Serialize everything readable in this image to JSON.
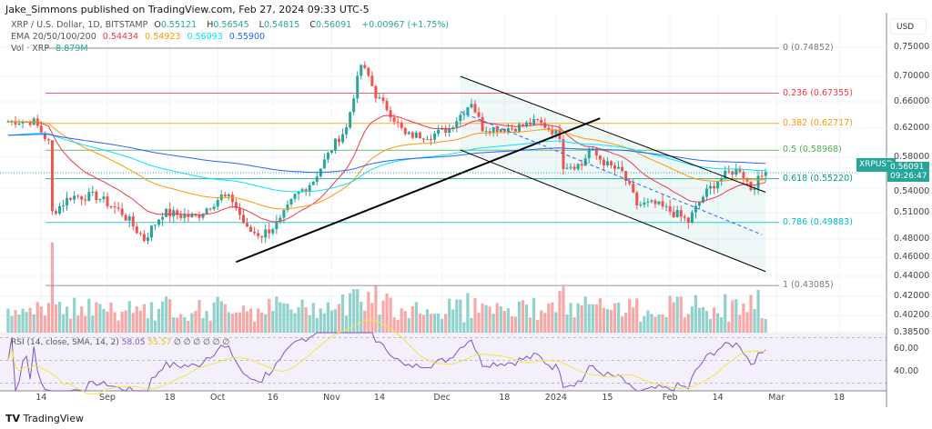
{
  "header": {
    "published": "Jake_Simmons published on TradingView.com, Feb 27, 2024 09:33 UTC-5"
  },
  "legend": {
    "symbol": "XRP / U.S. Dollar, 1D, BITSTAMP",
    "o_label": "O",
    "open": "0.55121",
    "h_label": "H",
    "high": "0.56545",
    "l_label": "L",
    "low": "0.54815",
    "c_label": "C",
    "close": "0.56091",
    "change": "+0.00967 (+1.75%)",
    "ema_label": "EMA 20/50/100/200",
    "ema20": "0.54434",
    "ema50": "0.54923",
    "ema100": "0.56093",
    "ema200": "0.55900",
    "vol_label": "Vol · XRP",
    "vol": "8.879M"
  },
  "colors": {
    "up": "#26a69a",
    "down": "#ef5350",
    "ema20": "#f23645",
    "ema50": "#ff9800",
    "ema100": "#00e5ff",
    "ema200": "#2962ff",
    "rsi": "#7e57c2",
    "rsi_ma": "#f5e642"
  },
  "axis": {
    "currency": "USD",
    "symbol_tag": "XRPUSD",
    "last_price": "0.56091",
    "countdown": "09:26:47"
  },
  "rsi": {
    "label": "RSI (14, close, SMA, 14, 2)",
    "value": "58.05",
    "ma": "55.57",
    "placeholders": "∅ ∅ ∅ ∅ ∅ ∅",
    "ticks": [
      "60.00",
      "40.00"
    ]
  },
  "footer": {
    "brand": "TradingView"
  },
  "chart_data": {
    "type": "candlestick",
    "y_ticks": [
      0.75,
      0.7,
      0.66,
      0.62,
      0.58,
      0.54,
      0.51,
      0.48,
      0.46,
      0.44,
      0.42,
      0.402,
      0.385
    ],
    "y_tick_labels": [
      "0.75000",
      "0.70000",
      "0.66000",
      "0.62000",
      "0.58000",
      "0.54000",
      "0.51000",
      "0.48000",
      "0.46000",
      "0.44000",
      "0.42000",
      "0.40200",
      "0.38500"
    ],
    "x_ticks": [
      {
        "date": "2023-08-14",
        "label": "14"
      },
      {
        "date": "2023-09-01",
        "label": "Sep"
      },
      {
        "date": "2023-09-18",
        "label": "18"
      },
      {
        "date": "2023-10-01",
        "label": "Oct"
      },
      {
        "date": "2023-10-16",
        "label": "16"
      },
      {
        "date": "2023-11-01",
        "label": "Nov"
      },
      {
        "date": "2023-11-14",
        "label": "14"
      },
      {
        "date": "2023-12-01",
        "label": "Dec"
      },
      {
        "date": "2023-12-18",
        "label": "18"
      },
      {
        "date": "2024-01-01",
        "label": "2024"
      },
      {
        "date": "2024-01-15",
        "label": "15"
      },
      {
        "date": "2024-02-01",
        "label": "Feb"
      },
      {
        "date": "2024-02-14",
        "label": "14"
      },
      {
        "date": "2024-03-01",
        "label": "Mar"
      },
      {
        "date": "2024-03-18",
        "label": "18"
      }
    ],
    "close_path": [
      [
        "2023-08-05",
        0.63
      ],
      [
        "2023-08-12",
        0.63
      ],
      [
        "2023-08-16",
        0.6
      ],
      [
        "2023-08-17",
        0.51
      ],
      [
        "2023-08-22",
        0.53
      ],
      [
        "2023-08-29",
        0.53
      ],
      [
        "2023-09-05",
        0.51
      ],
      [
        "2023-09-11",
        0.48
      ],
      [
        "2023-09-16",
        0.51
      ],
      [
        "2023-09-25",
        0.505
      ],
      [
        "2023-10-02",
        0.53
      ],
      [
        "2023-10-05",
        0.525
      ],
      [
        "2023-10-09",
        0.49
      ],
      [
        "2023-10-13",
        0.485
      ],
      [
        "2023-10-18",
        0.5
      ],
      [
        "2023-10-22",
        0.53
      ],
      [
        "2023-10-27",
        0.55
      ],
      [
        "2023-11-02",
        0.6
      ],
      [
        "2023-11-05",
        0.62
      ],
      [
        "2023-11-07",
        0.67
      ],
      [
        "2023-11-09",
        0.72
      ],
      [
        "2023-11-11",
        0.7
      ],
      [
        "2023-11-13",
        0.67
      ],
      [
        "2023-11-16",
        0.65
      ],
      [
        "2023-11-21",
        0.61
      ],
      [
        "2023-11-28",
        0.61
      ],
      [
        "2023-12-03",
        0.62
      ],
      [
        "2023-12-06",
        0.64
      ],
      [
        "2023-12-09",
        0.66
      ],
      [
        "2023-12-12",
        0.62
      ],
      [
        "2023-12-20",
        0.62
      ],
      [
        "2023-12-27",
        0.63
      ],
      [
        "2024-01-02",
        0.61
      ],
      [
        "2024-01-03",
        0.57
      ],
      [
        "2024-01-08",
        0.57
      ],
      [
        "2024-01-10",
        0.59
      ],
      [
        "2024-01-15",
        0.57
      ],
      [
        "2024-01-19",
        0.56
      ],
      [
        "2024-01-23",
        0.52
      ],
      [
        "2024-01-28",
        0.52
      ],
      [
        "2024-02-02",
        0.51
      ],
      [
        "2024-02-06",
        0.5
      ],
      [
        "2024-02-10",
        0.53
      ],
      [
        "2024-02-14",
        0.55
      ],
      [
        "2024-02-17",
        0.56
      ],
      [
        "2024-02-20",
        0.565
      ],
      [
        "2024-02-23",
        0.54
      ],
      [
        "2024-02-27",
        0.56091
      ]
    ],
    "fibonacci": [
      {
        "level": "0",
        "price": 0.74852,
        "label": "0 (0.74852)",
        "color": "#787b86"
      },
      {
        "level": "0.236",
        "price": 0.67355,
        "label": "0.236 (0.67355)",
        "color": "#f23645"
      },
      {
        "level": "0.382",
        "price": 0.62717,
        "label": "0.382 (0.62717)",
        "color": "#ff9800"
      },
      {
        "level": "0.5",
        "price": 0.58968,
        "label": "0.5 (0.58968)",
        "color": "#4caf50"
      },
      {
        "level": "0.618",
        "price": 0.5522,
        "label": "0.618 (0.55220)",
        "color": "#089981"
      },
      {
        "level": "0.786",
        "price": 0.49883,
        "label": "0.786 (0.49883)",
        "color": "#00bcd4"
      },
      {
        "level": "1",
        "price": 0.43085,
        "label": "1 (0.43085)",
        "color": "#787b86"
      }
    ],
    "trendline": [
      [
        "2023-10-06",
        0.455
      ],
      [
        "2024-01-13",
        0.635
      ]
    ],
    "channel": {
      "upper": [
        [
          "2023-12-06",
          0.7
        ],
        [
          "2024-02-27",
          0.535
        ]
      ],
      "lower": [
        [
          "2023-12-06",
          0.59
        ],
        [
          "2024-02-27",
          0.445
        ]
      ],
      "mid": [
        [
          "2023-12-06",
          0.645
        ],
        [
          "2024-02-26",
          0.485
        ]
      ]
    }
  }
}
